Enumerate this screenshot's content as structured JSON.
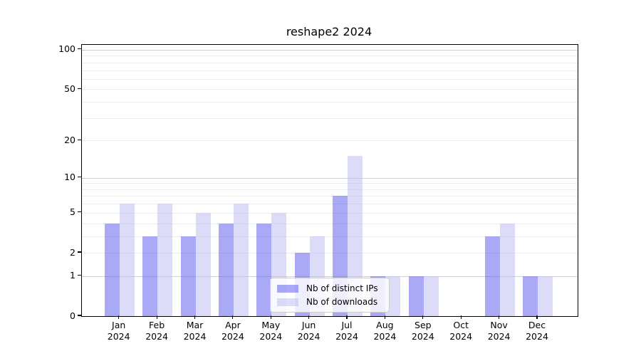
{
  "chart_data": {
    "type": "bar",
    "title": "reshape2 2024",
    "x": [
      "Jan",
      "Feb",
      "Mar",
      "Apr",
      "May",
      "Jun",
      "Jul",
      "Aug",
      "Sep",
      "Oct",
      "Nov",
      "Dec"
    ],
    "x_year": "2024",
    "series": [
      {
        "name": "Nb of distinct IPs",
        "color": "rgba(83,83,237,0.5)",
        "color_over_white": "#a9a9f6",
        "values": [
          4,
          3,
          3,
          4,
          4,
          2,
          7,
          1,
          1,
          0,
          3,
          1
        ]
      },
      {
        "name": "Nb of downloads",
        "color": "rgba(185,185,241,0.5)",
        "color_over_white": "#dcdcf8",
        "values": [
          6,
          6,
          5,
          6,
          5,
          3,
          15,
          1,
          1,
          0,
          4,
          1
        ]
      }
    ],
    "yscale": "log1p",
    "yticks": [
      0,
      1,
      2,
      5,
      10,
      20,
      50,
      100
    ],
    "ylim": [
      0,
      109
    ],
    "grid": true,
    "legend_position": "lower center",
    "colors": {
      "grid_major": "#d0d0d0",
      "grid_minor": "#ededed",
      "axis": "#000000",
      "text": "#000000",
      "background": "#ffffff"
    }
  }
}
